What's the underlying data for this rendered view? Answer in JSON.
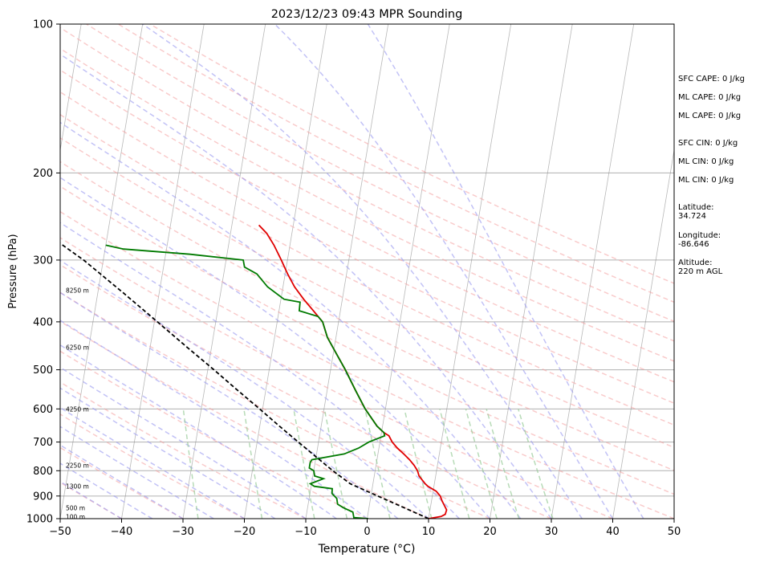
{
  "chart_data": {
    "type": "line",
    "title": "2023/12/23 09:43 MPR Sounding",
    "xlabel": "Temperature (°C)",
    "ylabel": "Pressure (hPa)",
    "xlim": [
      -50,
      50
    ],
    "ylim": [
      1000,
      100
    ],
    "y_scale": "log",
    "grid": true,
    "x_ticks": [
      -50,
      -40,
      -30,
      -20,
      -10,
      0,
      10,
      20,
      30,
      40,
      50
    ],
    "y_ticks": [
      1000,
      900,
      800,
      700,
      600,
      500,
      400,
      300,
      200,
      100
    ],
    "colors": {
      "temperature": "#e00000",
      "dewpoint": "#007a00",
      "parcel": "#000000",
      "dry_adiabats": "#f4a0a0",
      "moist_adiabats": "#9a9af0",
      "mixing_ratio": "#99cc99",
      "isotherms": "#888888"
    },
    "series": [
      {
        "role": "temperature",
        "points": [
          [
            1000,
            10.0
          ],
          [
            990,
            12.0
          ],
          [
            980,
            12.6
          ],
          [
            960,
            12.7
          ],
          [
            940,
            12.2
          ],
          [
            920,
            11.7
          ],
          [
            900,
            11.3
          ],
          [
            880,
            10.5
          ],
          [
            860,
            9.0
          ],
          [
            850,
            8.5
          ],
          [
            820,
            7.3
          ],
          [
            800,
            6.9
          ],
          [
            780,
            6.2
          ],
          [
            760,
            5.3
          ],
          [
            740,
            4.2
          ],
          [
            720,
            3.0
          ],
          [
            700,
            2.0
          ],
          [
            680,
            1.3
          ],
          [
            670,
            0.4
          ],
          [
            650,
            -0.9
          ],
          [
            600,
            -3.3
          ],
          [
            550,
            -5.4
          ],
          [
            500,
            -7.6
          ],
          [
            460,
            -9.7
          ],
          [
            430,
            -11.4
          ],
          [
            400,
            -12.6
          ],
          [
            380,
            -14.4
          ],
          [
            360,
            -16.3
          ],
          [
            340,
            -18.1
          ],
          [
            320,
            -19.6
          ],
          [
            300,
            -21.0
          ],
          [
            280,
            -22.6
          ],
          [
            265,
            -24.1
          ],
          [
            255,
            -25.6
          ]
        ]
      },
      {
        "role": "dewpoint",
        "points": [
          [
            1000,
            0.2
          ],
          [
            995,
            -2.2
          ],
          [
            970,
            -2.5
          ],
          [
            950,
            -4.2
          ],
          [
            935,
            -5.2
          ],
          [
            910,
            -5.5
          ],
          [
            890,
            -6.4
          ],
          [
            870,
            -6.5
          ],
          [
            860,
            -9.5
          ],
          [
            850,
            -10.2
          ],
          [
            830,
            -8.2
          ],
          [
            820,
            -9.7
          ],
          [
            800,
            -10.0
          ],
          [
            790,
            -10.8
          ],
          [
            770,
            -10.8
          ],
          [
            760,
            -10.6
          ],
          [
            740,
            -5.5
          ],
          [
            720,
            -3.3
          ],
          [
            700,
            -1.8
          ],
          [
            680,
            0.6
          ],
          [
            670,
            0.4
          ],
          [
            650,
            -0.9
          ],
          [
            600,
            -3.3
          ],
          [
            550,
            -5.4
          ],
          [
            500,
            -7.6
          ],
          [
            460,
            -9.7
          ],
          [
            430,
            -11.4
          ],
          [
            400,
            -12.6
          ],
          [
            390,
            -13.5
          ],
          [
            380,
            -16.7
          ],
          [
            365,
            -16.8
          ],
          [
            360,
            -19.5
          ],
          [
            340,
            -22.5
          ],
          [
            320,
            -24.6
          ],
          [
            310,
            -26.8
          ],
          [
            300,
            -27.2
          ],
          [
            292,
            -36.0
          ],
          [
            285,
            -47.0
          ],
          [
            280,
            -50.0
          ]
        ]
      },
      {
        "role": "parcel",
        "points": [
          [
            1000,
            10.0
          ],
          [
            950,
            5.7
          ],
          [
            900,
            1.1
          ],
          [
            850,
            -3.7
          ],
          [
            820,
            -5.6
          ],
          [
            800,
            -6.9
          ],
          [
            750,
            -10.0
          ],
          [
            700,
            -13.3
          ],
          [
            650,
            -16.8
          ],
          [
            600,
            -20.5
          ],
          [
            550,
            -24.6
          ],
          [
            500,
            -29.0
          ],
          [
            450,
            -34.0
          ],
          [
            400,
            -39.5
          ],
          [
            350,
            -45.8
          ],
          [
            300,
            -53.2
          ],
          [
            280,
            -57.0
          ],
          [
            260,
            -61.0
          ]
        ]
      }
    ],
    "height_labels": [
      "100 m",
      "500 m",
      "1300 m",
      "2250 m",
      "4250 m",
      "6250 m",
      "8250 m"
    ],
    "indices": {
      "sfc_cape": "SFC CAPE: 0 J/kg",
      "ml_cape_1": "ML CAPE: 0 J/kg",
      "ml_cape_2": "ML CAPE: 0 J/kg",
      "sfc_cin": "SFC CIN: 0 J/kg",
      "ml_cin_1": "ML CIN: 0 J/kg",
      "ml_cin_2": "ML CIN: 0 J/kg",
      "latitude": "Latitude:\n34.724",
      "longitude": "Longitude:\n-86.646",
      "altitude": "Altitude:\n220 m AGL"
    }
  }
}
